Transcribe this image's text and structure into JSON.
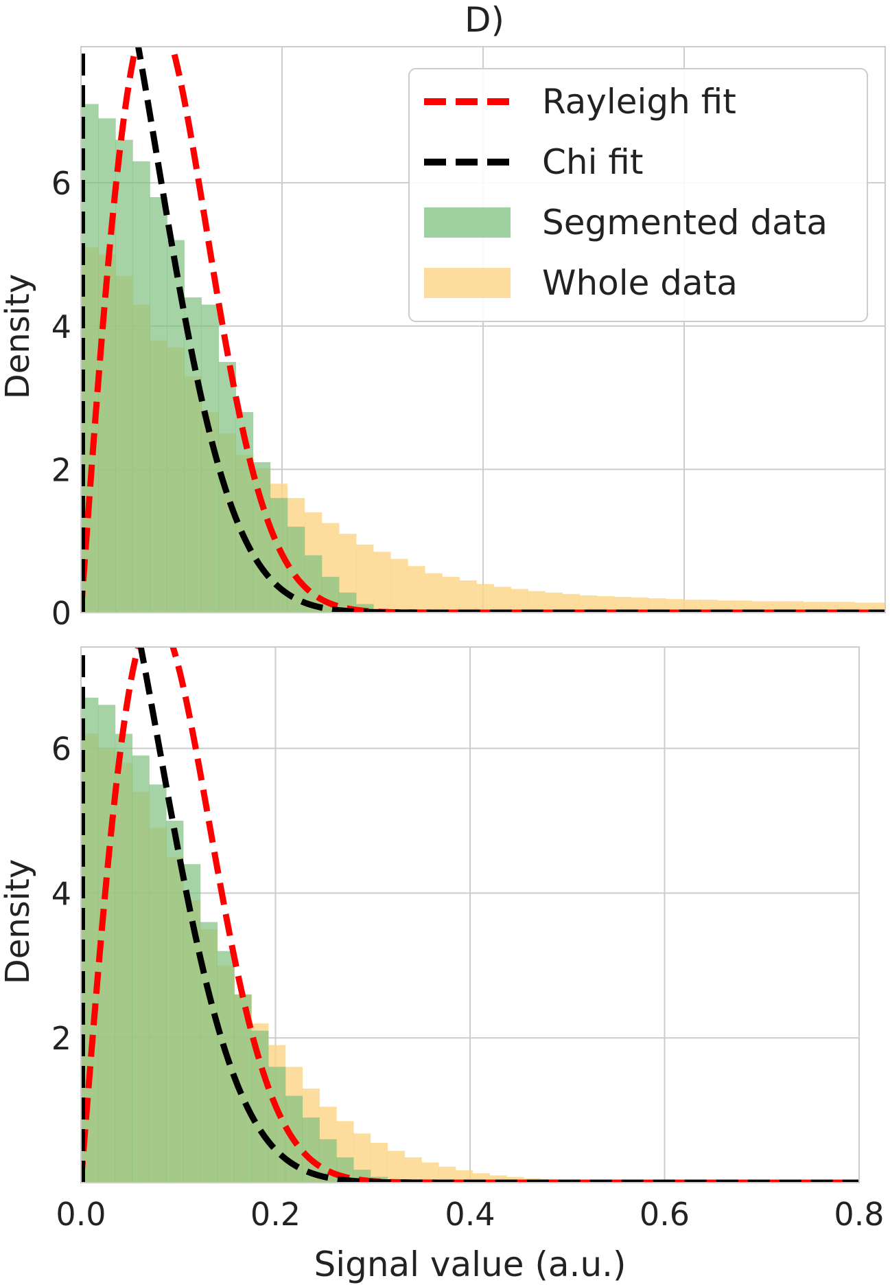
{
  "figure_title": "D)",
  "colors": {
    "rayleigh": "#ff0000",
    "chi": "#000000",
    "segmented": "#7fc07f",
    "whole": "#fdd485",
    "grid": "#cccccc",
    "frame": "#cccccc"
  },
  "legend": {
    "placement": "top-right of top panel",
    "entries": [
      {
        "key": "rayleigh",
        "label": "Rayleigh fit",
        "style": "dashed-line"
      },
      {
        "key": "chi",
        "label": "Chi fit",
        "style": "dashed-line"
      },
      {
        "key": "segmented",
        "label": "Segmented data",
        "style": "patch"
      },
      {
        "key": "whole",
        "label": "Whole data",
        "style": "patch"
      }
    ]
  },
  "chart_data": [
    {
      "type": "bar",
      "panel": "top",
      "title": "D)",
      "xlabel": "",
      "ylabel": "Density",
      "xlim": [
        0.0,
        0.8
      ],
      "ylim": [
        0,
        7.9
      ],
      "xticks": [
        0.2,
        0.4,
        0.6,
        0.8
      ],
      "xtick_labels_shown": false,
      "yticks": [
        0,
        2,
        4,
        6
      ],
      "grid": true,
      "bin_width": 0.0171,
      "series": [
        {
          "name": "Whole data",
          "key": "whole",
          "kind": "histogram",
          "values": [
            5.1,
            5.0,
            4.7,
            4.3,
            3.8,
            3.7,
            3.3,
            2.8,
            2.5,
            2.2,
            2.0,
            1.8,
            1.6,
            1.4,
            1.25,
            1.1,
            0.95,
            0.85,
            0.75,
            0.65,
            0.55,
            0.5,
            0.45,
            0.4,
            0.36,
            0.33,
            0.3,
            0.28,
            0.26,
            0.24,
            0.23,
            0.22,
            0.21,
            0.2,
            0.19,
            0.18,
            0.18,
            0.17,
            0.17,
            0.16,
            0.16,
            0.16,
            0.15,
            0.15,
            0.15,
            0.14,
            0.14
          ]
        },
        {
          "name": "Segmented data",
          "key": "segmented",
          "kind": "histogram",
          "values": [
            7.1,
            6.9,
            6.6,
            6.3,
            5.8,
            5.2,
            4.4,
            4.3,
            3.5,
            2.8,
            2.1,
            1.6,
            1.2,
            0.8,
            0.5,
            0.28,
            0.12,
            0.05,
            0.02,
            0.01
          ]
        },
        {
          "name": "Rayleigh fit",
          "key": "rayleigh",
          "kind": "curve",
          "sigma": 0.072,
          "amplitude": 1.0
        },
        {
          "name": "Chi fit",
          "key": "chi",
          "kind": "curve",
          "scale": 0.107,
          "amplitude": 0.995
        }
      ]
    },
    {
      "type": "bar",
      "panel": "bottom",
      "title": "",
      "xlabel": "Signal value (a.u.)",
      "ylabel": "Density",
      "xlim": [
        0.0,
        0.8
      ],
      "ylim": [
        0,
        7.4
      ],
      "xticks": [
        0.0,
        0.2,
        0.4,
        0.6,
        0.8
      ],
      "xtick_labels": [
        "0.0",
        "0.2",
        "0.4",
        "0.6",
        "0.8"
      ],
      "yticks": [
        2,
        4,
        6
      ],
      "grid": true,
      "bin_width": 0.0175,
      "series": [
        {
          "name": "Whole data",
          "key": "whole",
          "kind": "histogram",
          "values": [
            6.2,
            6.0,
            5.8,
            5.4,
            4.9,
            4.5,
            3.9,
            3.5,
            3.0,
            2.6,
            2.2,
            1.9,
            1.6,
            1.3,
            1.05,
            0.85,
            0.68,
            0.55,
            0.44,
            0.35,
            0.28,
            0.22,
            0.17,
            0.13,
            0.1,
            0.08,
            0.06,
            0.05,
            0.04,
            0.03,
            0.03,
            0.02,
            0.02,
            0.01
          ]
        },
        {
          "name": "Segmented data",
          "key": "segmented",
          "kind": "histogram",
          "values": [
            6.7,
            6.6,
            6.2,
            5.9,
            5.5,
            5.0,
            4.4,
            3.6,
            3.2,
            2.6,
            2.1,
            1.6,
            1.2,
            0.9,
            0.6,
            0.35,
            0.18,
            0.08,
            0.03,
            0.01
          ]
        },
        {
          "name": "Rayleigh fit",
          "key": "rayleigh",
          "kind": "curve",
          "sigma": 0.076,
          "amplitude": 0.98
        },
        {
          "name": "Chi fit",
          "key": "chi",
          "kind": "curve",
          "scale": 0.114,
          "amplitude": 1.0
        }
      ]
    }
  ]
}
